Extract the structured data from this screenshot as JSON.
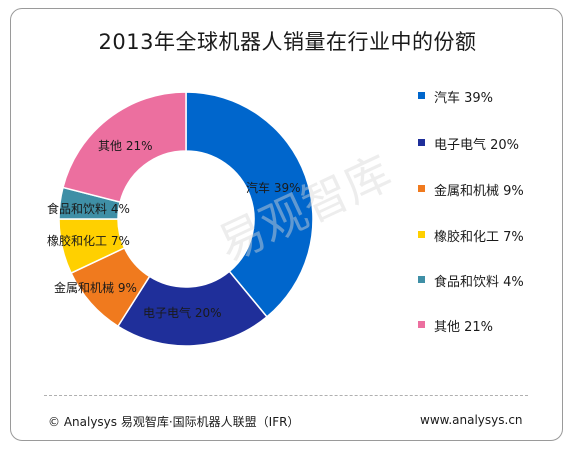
{
  "chart_data": {
    "type": "donut",
    "title": "2013年全球机器人销量在行业中的份额",
    "categories": [
      "汽车",
      "电子电气",
      "金属和机械",
      "橡胶和化工",
      "食品和饮料",
      "其他"
    ],
    "values": [
      39,
      20,
      9,
      7,
      4,
      21
    ],
    "value_labels": [
      "汽车 39%",
      "电子电气 20%",
      "金属和机械 9%",
      "橡胶和化工 7%",
      "食品和饮料 4%",
      "其他 21%"
    ],
    "colors": [
      "#0066cc",
      "#1f2f9a",
      "#f07a1e",
      "#ffd000",
      "#3f8fa6",
      "#ec6f9f"
    ],
    "legend": {
      "position": "right",
      "items": [
        {
          "label": "汽车 39%",
          "color": "#0066cc"
        },
        {
          "label": "电子电气 20%",
          "color": "#1f2f9a"
        },
        {
          "label": "金属和机械 9%",
          "color": "#f07a1e"
        },
        {
          "label": "橡胶和化工 7%",
          "color": "#ffd000"
        },
        {
          "label": "食品和饮料 4%",
          "color": "#3f8fa6"
        },
        {
          "label": "其他 21%",
          "color": "#ec6f9f"
        }
      ]
    }
  },
  "watermark": "易观智库",
  "footer": {
    "source": "© Analysys 易观智库·国际机器人联盟（IFR）",
    "url": "www.analysys.cn"
  }
}
